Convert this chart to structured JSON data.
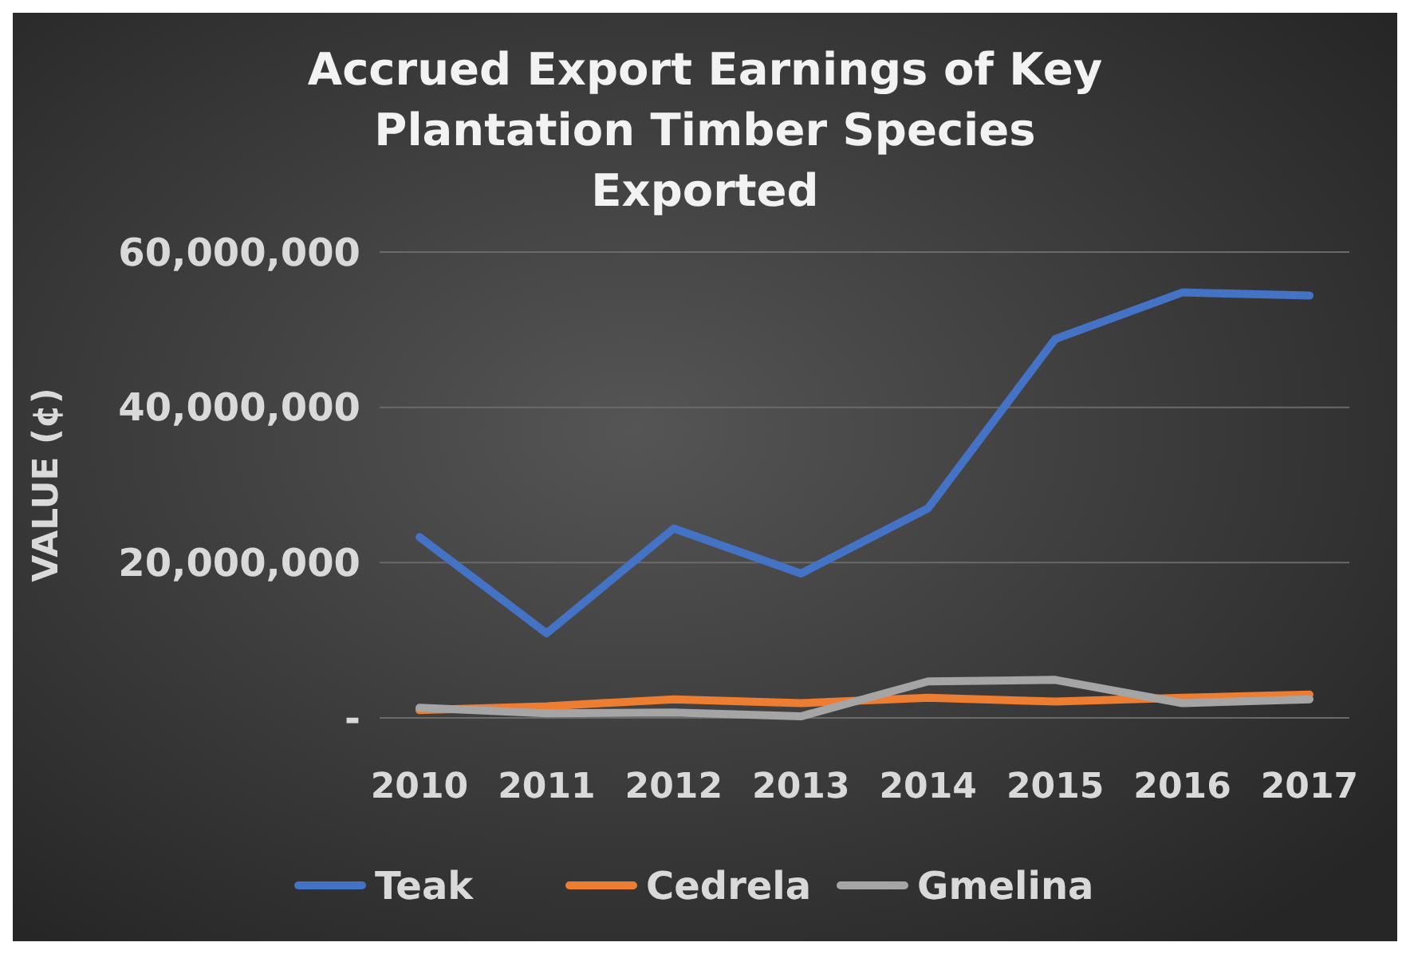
{
  "chart_data": {
    "type": "line",
    "title": "Accrued Export Earnings of Key Plantation Timber Species Exported",
    "ylabel": "VALUE (¢)",
    "categories": [
      "2010",
      "2011",
      "2012",
      "2013",
      "2014",
      "2015",
      "2016",
      "2017"
    ],
    "series": [
      {
        "name": "Teak",
        "color": "#4472c4",
        "values": [
          23300000,
          10900000,
          24400000,
          18600000,
          27000000,
          48800000,
          54800000,
          54400000
        ]
      },
      {
        "name": "Cedrela",
        "color": "#ed7d31",
        "values": [
          1000000,
          1500000,
          2400000,
          1900000,
          2600000,
          2100000,
          2600000,
          3000000
        ]
      },
      {
        "name": "Gmelina",
        "color": "#a5a5a5",
        "values": [
          1300000,
          600000,
          700000,
          200000,
          4700000,
          4900000,
          1900000,
          2400000
        ]
      }
    ],
    "ylim": [
      0,
      60000000
    ],
    "yticks": [
      {
        "value": 0,
        "label": "-"
      },
      {
        "value": 20000000,
        "label": "20,000,000"
      },
      {
        "value": 40000000,
        "label": "40,000,000"
      },
      {
        "value": 60000000,
        "label": "60,000,000"
      }
    ],
    "grid": "y",
    "legend": "bottom",
    "marker": "none",
    "line_style": "solid"
  }
}
